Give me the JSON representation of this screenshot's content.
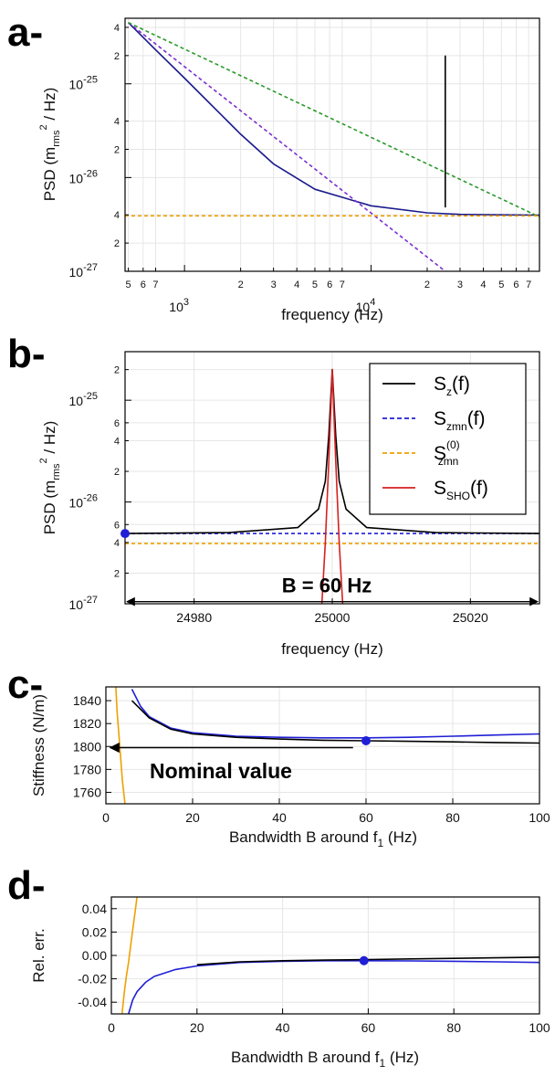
{
  "chart_data": [
    {
      "panel": "a-",
      "type": "line",
      "xlabel": "frequency (Hz)",
      "ylabel_parts": [
        "PSD (m",
        "rms",
        "2",
        " / Hz)"
      ],
      "xscale": "log",
      "yscale": "log",
      "xlim": [
        480,
        80000
      ],
      "ylim": [
        1e-27,
        5e-25
      ],
      "grid": true,
      "x_major_ticks": [
        {
          "value": 1000,
          "base": "10",
          "exp": "3"
        },
        {
          "value": 10000,
          "base": "10",
          "exp": "4"
        }
      ],
      "x_minor_ticks": [
        {
          "value": 500,
          "label": "5"
        },
        {
          "value": 600,
          "label": "6"
        },
        {
          "value": 700,
          "label": "7"
        },
        {
          "value": 2000,
          "label": "2"
        },
        {
          "value": 3000,
          "label": "3"
        },
        {
          "value": 4000,
          "label": "4"
        },
        {
          "value": 5000,
          "label": "5"
        },
        {
          "value": 6000,
          "label": "6"
        },
        {
          "value": 7000,
          "label": "7"
        },
        {
          "value": 20000,
          "label": "2"
        },
        {
          "value": 30000,
          "label": "3"
        },
        {
          "value": 40000,
          "label": "4"
        },
        {
          "value": 50000,
          "label": "5"
        },
        {
          "value": 60000,
          "label": "6"
        },
        {
          "value": 70000,
          "label": "7"
        }
      ],
      "y_major_ticks": [
        {
          "value": 1e-27,
          "base": "10",
          "exp": "-27"
        },
        {
          "value": 1e-26,
          "base": "10",
          "exp": "-26"
        },
        {
          "value": 1e-25,
          "base": "10",
          "exp": "-25"
        }
      ],
      "y_minor_ticks": [
        {
          "value": 2e-27,
          "label": "2"
        },
        {
          "value": 4e-27,
          "label": "4"
        },
        {
          "value": 2e-26,
          "label": "2"
        },
        {
          "value": 4e-26,
          "label": "4"
        },
        {
          "value": 2e-25,
          "label": "2"
        },
        {
          "value": 4e-25,
          "label": "4"
        }
      ],
      "series": [
        {
          "color": "#1a1a8c",
          "style": "solid",
          "x": [
            500,
            700,
            1000,
            2000,
            3000,
            5000,
            10000,
            20000,
            30000,
            50000,
            80000
          ],
          "y": [
            4.5e-25,
            2.3e-25,
            1.15e-25,
            2.9e-26,
            1.4e-26,
            7.5e-27,
            5e-27,
            4.2e-27,
            4.05e-27,
            4e-27,
            3.97e-27
          ]
        },
        {
          "color": "#7b2fd1",
          "style": "dashed",
          "x": [
            500,
            25000
          ],
          "y": [
            4.5e-25,
            1e-27
          ]
        },
        {
          "color": "#2a9a2a",
          "style": "dashed",
          "x": [
            500,
            80000
          ],
          "y": [
            4.5e-25,
            3.8e-27
          ]
        },
        {
          "color": "#f0a000",
          "style": "dashed",
          "x": [
            480,
            80000
          ],
          "y": [
            3.9e-27,
            3.9e-27
          ]
        },
        {
          "color": "#000000",
          "style": "solid",
          "x": [
            25000,
            25000
          ],
          "y": [
            4.8e-27,
            2e-25
          ]
        }
      ]
    },
    {
      "panel": "b-",
      "type": "line",
      "xlabel": "frequency (Hz)",
      "ylabel_parts": [
        "PSD (m",
        "rms",
        "2",
        " / Hz)"
      ],
      "xscale": "linear",
      "yscale": "log",
      "xlim": [
        24970,
        25030
      ],
      "ylim": [
        1e-27,
        3e-25
      ],
      "grid": true,
      "x_ticks": [
        24980,
        25000,
        25020
      ],
      "y_major_ticks": [
        {
          "value": 1e-27,
          "base": "10",
          "exp": "-27"
        },
        {
          "value": 1e-26,
          "base": "10",
          "exp": "-26"
        },
        {
          "value": 1e-25,
          "base": "10",
          "exp": "-25"
        }
      ],
      "y_minor_ticks": [
        {
          "value": 2e-27,
          "label": "2"
        },
        {
          "value": 4e-27,
          "label": "4"
        },
        {
          "value": 6e-27,
          "label": "6"
        },
        {
          "value": 2e-26,
          "label": "2"
        },
        {
          "value": 4e-26,
          "label": "4"
        },
        {
          "value": 6e-26,
          "label": "6"
        },
        {
          "value": 2e-25,
          "label": "2"
        }
      ],
      "annotation": "B = 60 Hz",
      "arrow_range": [
        24970,
        25030
      ],
      "arrow_y": 1.05e-27,
      "marker": {
        "x": 24970,
        "y": 4.9e-27,
        "color": "#1f1fd6"
      },
      "legend": {
        "placement": "top-right",
        "entries": [
          {
            "color": "#000000",
            "style": "solid",
            "main": "S",
            "sub": "z",
            "sup": "",
            "tail": "(f)"
          },
          {
            "color": "#1f1fd6",
            "style": "dashed",
            "main": "S",
            "sub": "zmn",
            "sup": "",
            "tail": "(f)"
          },
          {
            "color": "#f0a000",
            "style": "dashed",
            "main": "S",
            "sub": "zmn",
            "sup": "(0)",
            "tail": ""
          },
          {
            "color": "#d62020",
            "style": "solid",
            "main": "S",
            "sub": "SHO",
            "sup": "",
            "tail": "(f)"
          }
        ]
      },
      "series": [
        {
          "color": "#f0a000",
          "style": "dashed",
          "x": [
            24970,
            25030
          ],
          "y": [
            3.9e-27,
            3.9e-27
          ]
        },
        {
          "color": "#1f1fd6",
          "style": "dashed",
          "x": [
            24970,
            25030
          ],
          "y": [
            4.9e-27,
            4.9e-27
          ]
        },
        {
          "color": "#000000",
          "style": "solid",
          "x": [
            24970,
            24985,
            24995,
            24998,
            24999,
            24999.5,
            25000,
            25000.5,
            25001,
            25002,
            25005,
            25015,
            25030
          ],
          "y": [
            4.9e-27,
            5e-27,
            5.6e-27,
            8.5e-27,
            1.6e-26,
            4.5e-26,
            2e-25,
            4.5e-26,
            1.6e-26,
            8.5e-27,
            5.6e-27,
            5e-27,
            4.9e-27
          ]
        },
        {
          "color": "#d62020",
          "style": "solid",
          "x": [
            24998.5,
            24999,
            24999.5,
            25000,
            25000.5,
            25001,
            25001.5
          ],
          "y": [
            1e-27,
            4e-27,
            2.5e-26,
            2e-25,
            2.5e-26,
            4e-27,
            1e-27
          ]
        }
      ]
    },
    {
      "panel": "c-",
      "type": "line",
      "xlabel_parts": [
        "Bandwidth B around f",
        "1",
        " (Hz)"
      ],
      "ylabel": "Stiffness (N/m)",
      "xlim": [
        0,
        100
      ],
      "ylim": [
        1750,
        1852
      ],
      "grid": true,
      "x_ticks": [
        0,
        20,
        40,
        60,
        80,
        100
      ],
      "y_ticks": [
        1760,
        1780,
        1800,
        1820,
        1840
      ],
      "annotation": "Nominal value",
      "arrow": {
        "from": [
          57,
          1799
        ],
        "to": [
          1,
          1799
        ]
      },
      "marker": {
        "x": 60,
        "y": 1805,
        "color": "#1f1fd6"
      },
      "series": [
        {
          "color": "#f0a000",
          "style": "solid",
          "x": [
            2.3,
            2.6,
            3.0,
            3.4,
            3.8,
            4.4
          ],
          "y": [
            1852,
            1830,
            1810,
            1790,
            1770,
            1750
          ]
        },
        {
          "color": "#1f1fd6",
          "style": "solid",
          "x": [
            6,
            8,
            10,
            15,
            20,
            30,
            40,
            50,
            60,
            70,
            80,
            90,
            100
          ],
          "y": [
            1850,
            1835,
            1826,
            1816,
            1812,
            1809,
            1808,
            1807.5,
            1807.5,
            1808,
            1809,
            1810,
            1811
          ]
        },
        {
          "color": "#000000",
          "style": "solid",
          "x": [
            6,
            10,
            15,
            20,
            30,
            40,
            50,
            60,
            70,
            80,
            90,
            100
          ],
          "y": [
            1840,
            1825,
            1815,
            1811,
            1808,
            1806.5,
            1805.5,
            1805,
            1804.5,
            1804,
            1803.5,
            1803
          ]
        }
      ]
    },
    {
      "panel": "d-",
      "type": "line",
      "xlabel_parts": [
        "Bandwidth B around f",
        "1",
        " (Hz)"
      ],
      "ylabel": "Rel. err.",
      "xlim": [
        0,
        100
      ],
      "ylim": [
        -0.05,
        0.05
      ],
      "grid": true,
      "x_ticks": [
        0,
        20,
        40,
        60,
        80,
        100
      ],
      "y_ticks": [
        {
          "value": -0.04,
          "label": "-0.04"
        },
        {
          "value": -0.02,
          "label": "-0.02"
        },
        {
          "value": 0,
          "label": "0.00"
        },
        {
          "value": 0.02,
          "label": "0.02"
        },
        {
          "value": 0.04,
          "label": "0.04"
        }
      ],
      "marker": {
        "x": 59,
        "y": -0.0045,
        "color": "#1f1fd6"
      },
      "series": [
        {
          "color": "#f0a000",
          "style": "solid",
          "x": [
            2.5,
            3.0,
            3.5,
            4.0,
            4.5,
            5.0,
            5.5,
            6.0
          ],
          "y": [
            -0.05,
            -0.032,
            -0.018,
            -0.006,
            0.008,
            0.022,
            0.036,
            0.05
          ]
        },
        {
          "color": "#1f1fd6",
          "style": "solid",
          "x": [
            4,
            5,
            6,
            8,
            10,
            15,
            20,
            30,
            40,
            50,
            60,
            70,
            80,
            90,
            100
          ],
          "y": [
            -0.05,
            -0.038,
            -0.031,
            -0.023,
            -0.018,
            -0.012,
            -0.009,
            -0.006,
            -0.005,
            -0.0045,
            -0.0045,
            -0.0047,
            -0.005,
            -0.0055,
            -0.006
          ]
        },
        {
          "color": "#000000",
          "style": "solid",
          "x": [
            20,
            30,
            40,
            50,
            60,
            70,
            80,
            90,
            100
          ],
          "y": [
            -0.008,
            -0.0055,
            -0.0045,
            -0.004,
            -0.0035,
            -0.003,
            -0.0025,
            -0.002,
            -0.0015
          ]
        }
      ]
    }
  ]
}
